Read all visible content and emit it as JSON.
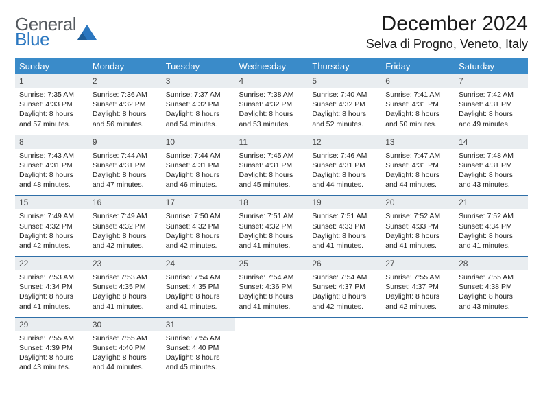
{
  "brand": {
    "general": "General",
    "blue": "Blue"
  },
  "title": "December 2024",
  "subtitle": "Selva di Progno, Veneto, Italy",
  "colors": {
    "header_bg": "#3a8bc9",
    "header_text": "#ffffff",
    "daynum_bg": "#e9edf0",
    "week_sep": "#2f6fa8",
    "logo_gray": "#555a5f",
    "logo_blue": "#2b77c0"
  },
  "day_headers": [
    "Sunday",
    "Monday",
    "Tuesday",
    "Wednesday",
    "Thursday",
    "Friday",
    "Saturday"
  ],
  "weeks": [
    [
      {
        "n": "1",
        "sr": "7:35 AM",
        "ss": "4:33 PM",
        "dl": "8 hours and 57 minutes."
      },
      {
        "n": "2",
        "sr": "7:36 AM",
        "ss": "4:32 PM",
        "dl": "8 hours and 56 minutes."
      },
      {
        "n": "3",
        "sr": "7:37 AM",
        "ss": "4:32 PM",
        "dl": "8 hours and 54 minutes."
      },
      {
        "n": "4",
        "sr": "7:38 AM",
        "ss": "4:32 PM",
        "dl": "8 hours and 53 minutes."
      },
      {
        "n": "5",
        "sr": "7:40 AM",
        "ss": "4:32 PM",
        "dl": "8 hours and 52 minutes."
      },
      {
        "n": "6",
        "sr": "7:41 AM",
        "ss": "4:31 PM",
        "dl": "8 hours and 50 minutes."
      },
      {
        "n": "7",
        "sr": "7:42 AM",
        "ss": "4:31 PM",
        "dl": "8 hours and 49 minutes."
      }
    ],
    [
      {
        "n": "8",
        "sr": "7:43 AM",
        "ss": "4:31 PM",
        "dl": "8 hours and 48 minutes."
      },
      {
        "n": "9",
        "sr": "7:44 AM",
        "ss": "4:31 PM",
        "dl": "8 hours and 47 minutes."
      },
      {
        "n": "10",
        "sr": "7:44 AM",
        "ss": "4:31 PM",
        "dl": "8 hours and 46 minutes."
      },
      {
        "n": "11",
        "sr": "7:45 AM",
        "ss": "4:31 PM",
        "dl": "8 hours and 45 minutes."
      },
      {
        "n": "12",
        "sr": "7:46 AM",
        "ss": "4:31 PM",
        "dl": "8 hours and 44 minutes."
      },
      {
        "n": "13",
        "sr": "7:47 AM",
        "ss": "4:31 PM",
        "dl": "8 hours and 44 minutes."
      },
      {
        "n": "14",
        "sr": "7:48 AM",
        "ss": "4:31 PM",
        "dl": "8 hours and 43 minutes."
      }
    ],
    [
      {
        "n": "15",
        "sr": "7:49 AM",
        "ss": "4:32 PM",
        "dl": "8 hours and 42 minutes."
      },
      {
        "n": "16",
        "sr": "7:49 AM",
        "ss": "4:32 PM",
        "dl": "8 hours and 42 minutes."
      },
      {
        "n": "17",
        "sr": "7:50 AM",
        "ss": "4:32 PM",
        "dl": "8 hours and 42 minutes."
      },
      {
        "n": "18",
        "sr": "7:51 AM",
        "ss": "4:32 PM",
        "dl": "8 hours and 41 minutes."
      },
      {
        "n": "19",
        "sr": "7:51 AM",
        "ss": "4:33 PM",
        "dl": "8 hours and 41 minutes."
      },
      {
        "n": "20",
        "sr": "7:52 AM",
        "ss": "4:33 PM",
        "dl": "8 hours and 41 minutes."
      },
      {
        "n": "21",
        "sr": "7:52 AM",
        "ss": "4:34 PM",
        "dl": "8 hours and 41 minutes."
      }
    ],
    [
      {
        "n": "22",
        "sr": "7:53 AM",
        "ss": "4:34 PM",
        "dl": "8 hours and 41 minutes."
      },
      {
        "n": "23",
        "sr": "7:53 AM",
        "ss": "4:35 PM",
        "dl": "8 hours and 41 minutes."
      },
      {
        "n": "24",
        "sr": "7:54 AM",
        "ss": "4:35 PM",
        "dl": "8 hours and 41 minutes."
      },
      {
        "n": "25",
        "sr": "7:54 AM",
        "ss": "4:36 PM",
        "dl": "8 hours and 41 minutes."
      },
      {
        "n": "26",
        "sr": "7:54 AM",
        "ss": "4:37 PM",
        "dl": "8 hours and 42 minutes."
      },
      {
        "n": "27",
        "sr": "7:55 AM",
        "ss": "4:37 PM",
        "dl": "8 hours and 42 minutes."
      },
      {
        "n": "28",
        "sr": "7:55 AM",
        "ss": "4:38 PM",
        "dl": "8 hours and 43 minutes."
      }
    ],
    [
      {
        "n": "29",
        "sr": "7:55 AM",
        "ss": "4:39 PM",
        "dl": "8 hours and 43 minutes."
      },
      {
        "n": "30",
        "sr": "7:55 AM",
        "ss": "4:40 PM",
        "dl": "8 hours and 44 minutes."
      },
      {
        "n": "31",
        "sr": "7:55 AM",
        "ss": "4:40 PM",
        "dl": "8 hours and 45 minutes."
      },
      null,
      null,
      null,
      null
    ]
  ],
  "labels": {
    "sunrise": "Sunrise: ",
    "sunset": "Sunset: ",
    "daylight": "Daylight: "
  }
}
